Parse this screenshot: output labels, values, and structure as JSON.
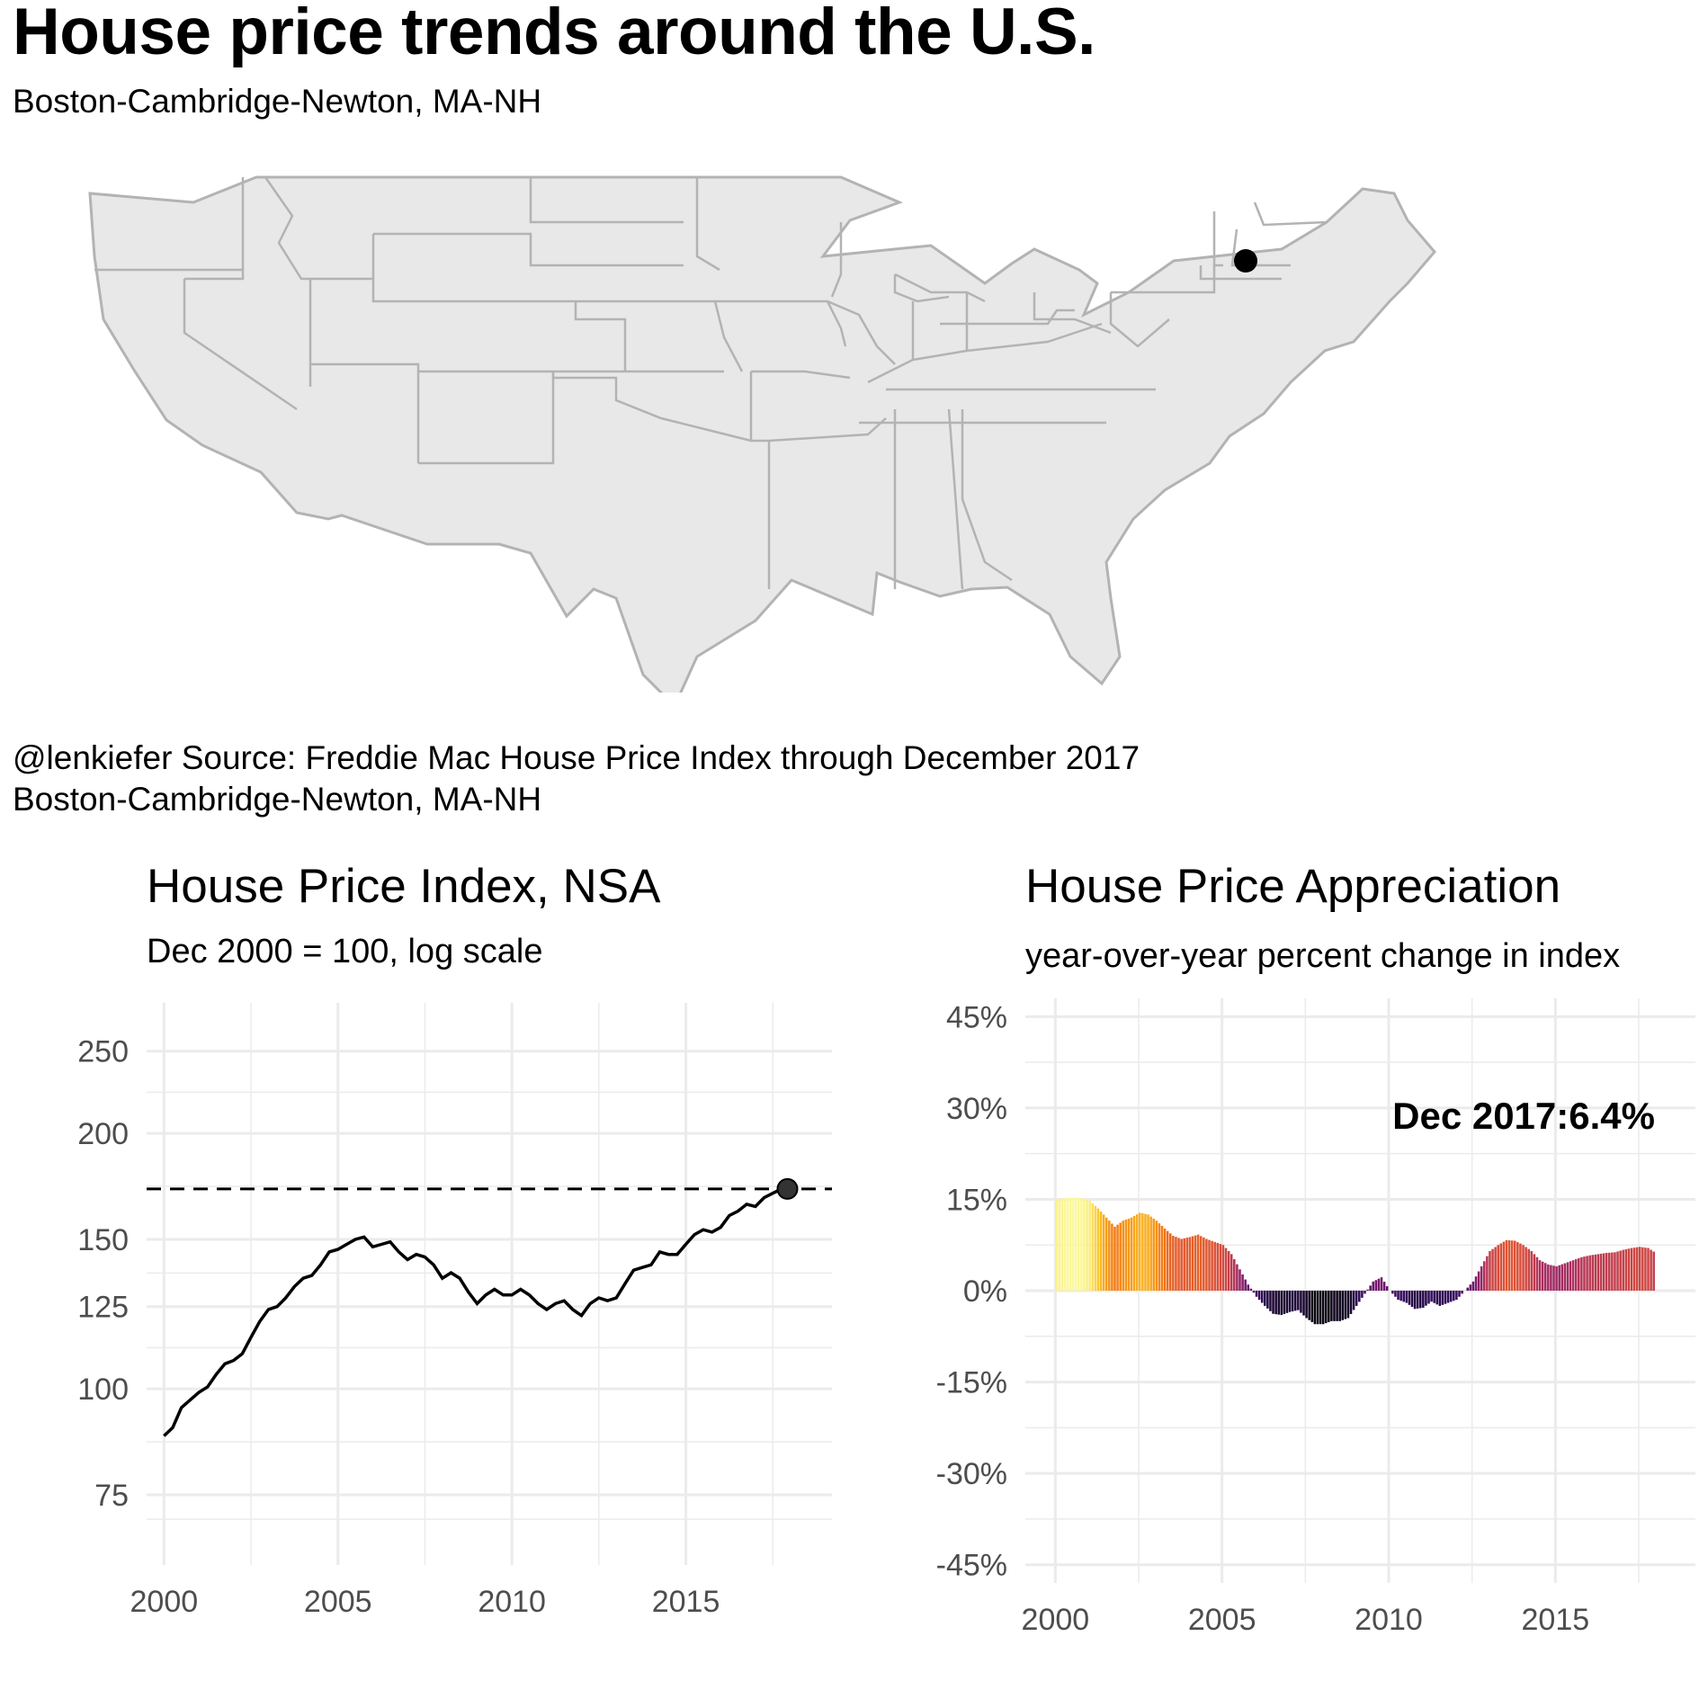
{
  "header": {
    "title": "House price trends around the U.S.",
    "subtitle": "Boston-Cambridge-Newton, MA-NH"
  },
  "map": {
    "fill_color": "#e8e8e8",
    "border_color": "#b3b3b3",
    "marker_label": "Boston-Cambridge-Newton, MA-NH",
    "marker_color": "#000000"
  },
  "caption": {
    "line1": "@lenkiefer Source: Freddie Mac House Price Index through December 2017",
    "line2": "Boston-Cambridge-Newton, MA-NH"
  },
  "chart_data": [
    {
      "type": "line",
      "title": "House Price Index, NSA",
      "subtitle": "Dec 2000 = 100, log scale",
      "y_scale": "log",
      "ylim": [
        62,
        285
      ],
      "xlim": [
        1999.5,
        2019.2
      ],
      "x_ticks": [
        2000,
        2005,
        2010,
        2015
      ],
      "y_ticks": [
        75,
        100,
        125,
        150,
        200,
        250
      ],
      "y_tick_labels": [
        "75",
        "100",
        "125",
        "150",
        "200",
        "250"
      ],
      "reference_line": 172,
      "reference_style": "dashed",
      "last_point": {
        "x": 2017.92,
        "y": 172
      },
      "line_color": "#000000",
      "series": [
        {
          "x": [
            2000.0,
            2000.25,
            2000.5,
            2000.75,
            2001.0,
            2001.25,
            2001.5,
            2001.75,
            2002.0,
            2002.25,
            2002.5,
            2002.75,
            2003.0,
            2003.25,
            2003.5,
            2003.75,
            2004.0,
            2004.25,
            2004.5,
            2004.75,
            2005.0,
            2005.25,
            2005.5,
            2005.75,
            2006.0,
            2006.25,
            2006.5,
            2006.75,
            2007.0,
            2007.25,
            2007.5,
            2007.75,
            2008.0,
            2008.25,
            2008.5,
            2008.75,
            2009.0,
            2009.25,
            2009.5,
            2009.75,
            2010.0,
            2010.25,
            2010.5,
            2010.75,
            2011.0,
            2011.25,
            2011.5,
            2011.75,
            2012.0,
            2012.25,
            2012.5,
            2012.75,
            2013.0,
            2013.25,
            2013.5,
            2013.75,
            2014.0,
            2014.25,
            2014.5,
            2014.75,
            2015.0,
            2015.25,
            2015.5,
            2015.75,
            2016.0,
            2016.25,
            2016.5,
            2016.75,
            2017.0,
            2017.25,
            2017.5,
            2017.75,
            2017.92
          ],
          "values": [
            88,
            90,
            95,
            97,
            99,
            100.5,
            104,
            107,
            108,
            110,
            115,
            120,
            124,
            125,
            128,
            132,
            135,
            136,
            140,
            145,
            146,
            148,
            150,
            151,
            147,
            148,
            149,
            145,
            142,
            144,
            143,
            140,
            135,
            137,
            135,
            130,
            126,
            129,
            131,
            129,
            129,
            131,
            129,
            126,
            124,
            126,
            127,
            124,
            122,
            126,
            128,
            127,
            128,
            133,
            138,
            139,
            140,
            145,
            144,
            144,
            148,
            152,
            154,
            153,
            155,
            160,
            162,
            165,
            164,
            168,
            170,
            172,
            172
          ]
        }
      ]
    },
    {
      "type": "bar",
      "title": "House Price Appreciation",
      "subtitle": "year-over-year percent change in index",
      "ylim": [
        -48,
        48
      ],
      "xlim": [
        1999.1,
        2019.2
      ],
      "x_ticks": [
        2000,
        2005,
        2010,
        2015
      ],
      "y_ticks": [
        -45,
        -30,
        -15,
        0,
        15,
        30,
        45
      ],
      "y_tick_labels": [
        "-45%",
        "-30%",
        "-15%",
        "0%",
        "15%",
        "30%",
        "45%"
      ],
      "annotation": "Dec 2017:6.4%",
      "palette": "inferno",
      "series": [
        {
          "name": "",
          "x": [
            2000.0,
            2000.25,
            2000.5,
            2000.75,
            2001.0,
            2001.25,
            2001.5,
            2001.75,
            2002.0,
            2002.25,
            2002.5,
            2002.75,
            2003.0,
            2003.25,
            2003.5,
            2003.75,
            2004.0,
            2004.25,
            2004.5,
            2004.75,
            2005.0,
            2005.25,
            2005.5,
            2005.75,
            2006.0,
            2006.25,
            2006.5,
            2006.75,
            2007.0,
            2007.25,
            2007.5,
            2007.75,
            2008.0,
            2008.25,
            2008.5,
            2008.75,
            2009.0,
            2009.25,
            2009.5,
            2009.75,
            2010.0,
            2010.25,
            2010.5,
            2010.75,
            2011.0,
            2011.25,
            2011.5,
            2011.75,
            2012.0,
            2012.25,
            2012.5,
            2012.75,
            2013.0,
            2013.25,
            2013.5,
            2013.75,
            2014.0,
            2014.25,
            2014.5,
            2014.75,
            2015.0,
            2015.25,
            2015.5,
            2015.75,
            2016.0,
            2016.25,
            2016.5,
            2016.75,
            2017.0,
            2017.25,
            2017.5,
            2017.75,
            2017.92
          ],
          "values": [
            15.0,
            15.2,
            15.3,
            15.2,
            14.8,
            13.5,
            12.0,
            10.5,
            11.5,
            12.0,
            12.8,
            12.5,
            11.5,
            10.2,
            9.0,
            8.5,
            8.8,
            9.2,
            8.5,
            8.0,
            7.5,
            6.0,
            3.5,
            1.0,
            -1.0,
            -2.5,
            -3.8,
            -4.0,
            -3.5,
            -3.2,
            -4.5,
            -5.5,
            -5.5,
            -5.0,
            -5.0,
            -4.5,
            -2.5,
            -0.5,
            1.5,
            2.2,
            0.0,
            -1.5,
            -2.0,
            -3.0,
            -2.8,
            -1.8,
            -2.5,
            -2.0,
            -1.5,
            0.0,
            1.5,
            4.0,
            6.5,
            7.5,
            8.3,
            8.2,
            7.5,
            6.5,
            5.0,
            4.3,
            4.0,
            4.5,
            5.0,
            5.5,
            5.8,
            6.0,
            6.2,
            6.3,
            6.7,
            7.0,
            7.2,
            7.0,
            6.4
          ]
        }
      ]
    }
  ]
}
